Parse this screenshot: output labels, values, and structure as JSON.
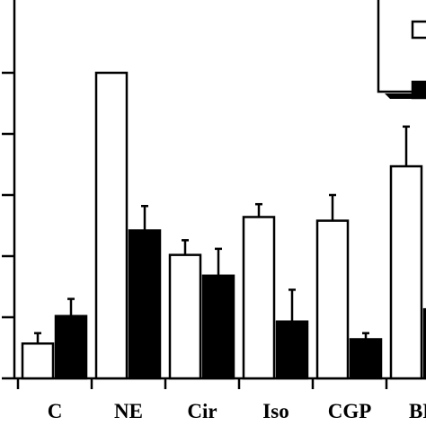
{
  "chart_data": {
    "type": "bar",
    "categories": [
      "C",
      "NE",
      "Cir",
      "Iso",
      "CGP",
      "BR"
    ],
    "ylim": [
      0,
      5.1
    ],
    "yticks": [
      0,
      1,
      2,
      3,
      4,
      5
    ],
    "series": [
      {
        "fill": "#ffffff",
        "values": [
          0.57,
          5.0,
          2.02,
          2.64,
          2.58,
          3.47
        ],
        "errors": [
          0.17,
          0.0,
          0.24,
          0.21,
          0.42,
          0.65
        ]
      },
      {
        "fill": "#000000",
        "values": [
          1.02,
          2.42,
          1.68,
          0.93,
          0.64,
          1.13
        ],
        "errors": [
          0.28,
          0.4,
          0.44,
          0.52,
          0.1,
          0.0
        ]
      }
    ],
    "grid": false,
    "legend_placement": "top-right"
  }
}
